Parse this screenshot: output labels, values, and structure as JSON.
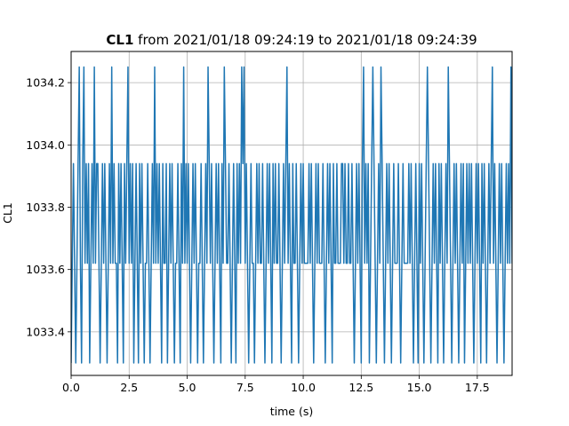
{
  "chart_data": {
    "type": "line",
    "title_bold": "CL1",
    "title_rest": " from 2021/01/18 09:24:19 to 2021/01/18 09:24:39",
    "xlabel": "time (s)",
    "ylabel": "CL1",
    "xlim": [
      0.0,
      19.0
    ],
    "ylim": [
      1033.26,
      1034.3
    ],
    "xticks": [
      0.0,
      2.5,
      5.0,
      7.5,
      10.0,
      12.5,
      15.0,
      17.5
    ],
    "xtick_labels": [
      "0.0",
      "2.5",
      "5.0",
      "7.5",
      "10.0",
      "12.5",
      "15.0",
      "17.5"
    ],
    "yticks": [
      1033.4,
      1033.6,
      1033.8,
      1034.0,
      1034.2
    ],
    "ytick_labels": [
      "1033.4",
      "1033.6",
      "1033.8",
      "1034.0",
      "1034.2"
    ],
    "grid": true,
    "color": "#1f77b4",
    "sample_interval_s": 0.05,
    "levels": [
      1033.3,
      1033.62,
      1033.94,
      1034.25
    ],
    "series": [
      {
        "levels_sequence": [
          0,
          1,
          2,
          1,
          0,
          1,
          2,
          3,
          1,
          0,
          2,
          3,
          1,
          2,
          1,
          2,
          0,
          1,
          2,
          1,
          3,
          1,
          2,
          2,
          1,
          0,
          1,
          2,
          1,
          2,
          1,
          0,
          1,
          2,
          1,
          3,
          1,
          2,
          1,
          1,
          0,
          2,
          1,
          2,
          1,
          0,
          2,
          1,
          2,
          3,
          1,
          2,
          1,
          2,
          0,
          1,
          2,
          1,
          0,
          2,
          1,
          2,
          1,
          0,
          1,
          1,
          2,
          1,
          0,
          1,
          2,
          1,
          3,
          1,
          2,
          1,
          2,
          1,
          0,
          2,
          1,
          1,
          2,
          0,
          1,
          2,
          1,
          2,
          1,
          0,
          1,
          1,
          2,
          1,
          0,
          2,
          1,
          3,
          1,
          2,
          1,
          2,
          1,
          0,
          1,
          2,
          1,
          2,
          1,
          0,
          1,
          1,
          2,
          1,
          0,
          1,
          2,
          1,
          3,
          2,
          1,
          2,
          1,
          0,
          1,
          2,
          1,
          2,
          1,
          0,
          2,
          1,
          3,
          2,
          1,
          1,
          2,
          1,
          0,
          1,
          2,
          1,
          0,
          2,
          1,
          2,
          1,
          3,
          2,
          3,
          1,
          2,
          1,
          0,
          1,
          2,
          1,
          1,
          0,
          1,
          2,
          1,
          2,
          1,
          1,
          2,
          1,
          0,
          1,
          2,
          1,
          2,
          1,
          0,
          2,
          1,
          2,
          1,
          1,
          2,
          1,
          0,
          1,
          2,
          1,
          2,
          3,
          1,
          2,
          1,
          0,
          2,
          1,
          1,
          2,
          1,
          0,
          1,
          2,
          1,
          2,
          1,
          1,
          1,
          1,
          2,
          1,
          2,
          1,
          0,
          1,
          2,
          1,
          2,
          1,
          1,
          1,
          2,
          1,
          0,
          1,
          2,
          1,
          2,
          1,
          0,
          2,
          1,
          1,
          2,
          1,
          1,
          1,
          2,
          2,
          1,
          2,
          1,
          1,
          2,
          1,
          1,
          2,
          1,
          0,
          1,
          2,
          1,
          2,
          1,
          0,
          2,
          3,
          1,
          2,
          1,
          2,
          0,
          1,
          2,
          3,
          2,
          1,
          0,
          1,
          2,
          1,
          3,
          2,
          1,
          0,
          1,
          2,
          1,
          2,
          1,
          0,
          1,
          2,
          1,
          1,
          1,
          2,
          1,
          0,
          1,
          2,
          1,
          1,
          1,
          1,
          2,
          1,
          2,
          1,
          0,
          1,
          2,
          1,
          0,
          2,
          1,
          2,
          1,
          0,
          1,
          2,
          3,
          2,
          1,
          0,
          1,
          2,
          1,
          2,
          1,
          0,
          2,
          1,
          2,
          1,
          0,
          1,
          2,
          1,
          3,
          2,
          1,
          0,
          1,
          2,
          1,
          2,
          1,
          0,
          1,
          2,
          1,
          2,
          0,
          1,
          2,
          1,
          2,
          1,
          2,
          1,
          0,
          1,
          2,
          1,
          2,
          1,
          0,
          2,
          1,
          2,
          1,
          0,
          1,
          2,
          1,
          2,
          3,
          1,
          2,
          1,
          0,
          1,
          2,
          1,
          2,
          1,
          0,
          1,
          2,
          1,
          2,
          1,
          3,
          1,
          2,
          1,
          0,
          1,
          2,
          1,
          2,
          1,
          2,
          1,
          0,
          1,
          2,
          1,
          2,
          1,
          0,
          1,
          2,
          1,
          2,
          1
        ]
      }
    ]
  }
}
